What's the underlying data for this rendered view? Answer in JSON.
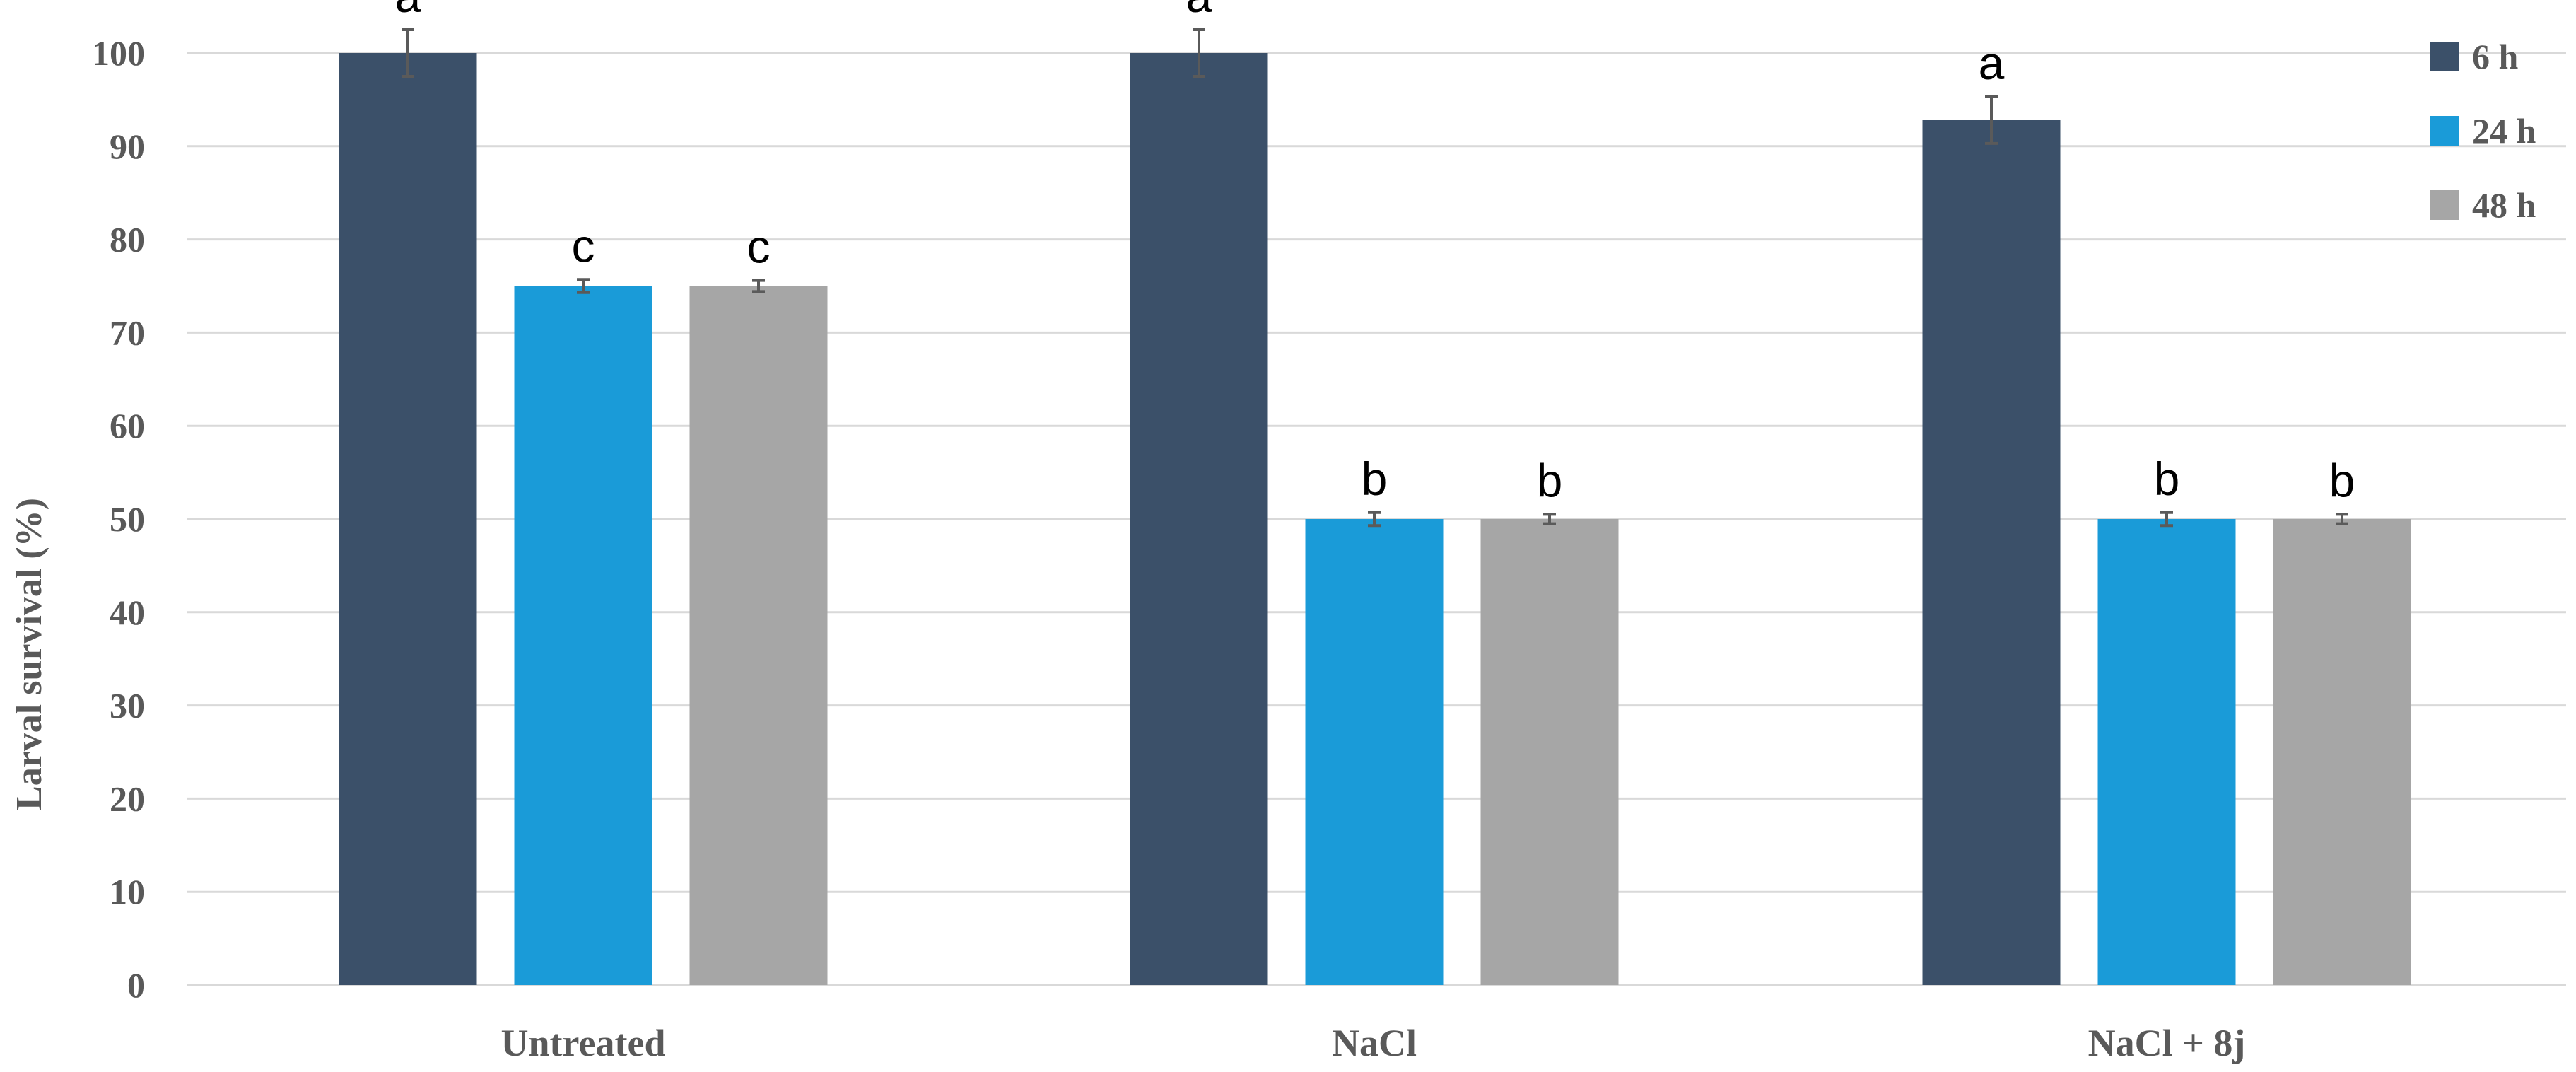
{
  "chart_data": {
    "type": "bar",
    "ylabel": "Larval survival (%)",
    "xlabel": "",
    "ylim": [
      0,
      100
    ],
    "yticks": [
      0,
      10,
      20,
      30,
      40,
      50,
      60,
      70,
      80,
      90,
      100
    ],
    "grid": true,
    "legend_position": "top-right",
    "categories": [
      "Untreated",
      "NaCl",
      "NaCl + 8j"
    ],
    "series": [
      {
        "name": "6 h",
        "color": "#3b5069",
        "values": [
          100,
          100,
          92.8
        ],
        "errors": [
          2.5,
          2.5,
          2.5
        ],
        "labels": [
          "a",
          "a",
          "a"
        ]
      },
      {
        "name": "24 h",
        "color": "#1a9bd8",
        "values": [
          75,
          50,
          50
        ],
        "errors": [
          0.7,
          0.7,
          0.7
        ],
        "labels": [
          "c",
          "b",
          "b"
        ]
      },
      {
        "name": "48 h",
        "color": "#a6a6a6",
        "values": [
          75,
          50,
          50
        ],
        "errors": [
          0.6,
          0.5,
          0.5
        ],
        "labels": [
          "c",
          "b",
          "b"
        ]
      }
    ]
  }
}
